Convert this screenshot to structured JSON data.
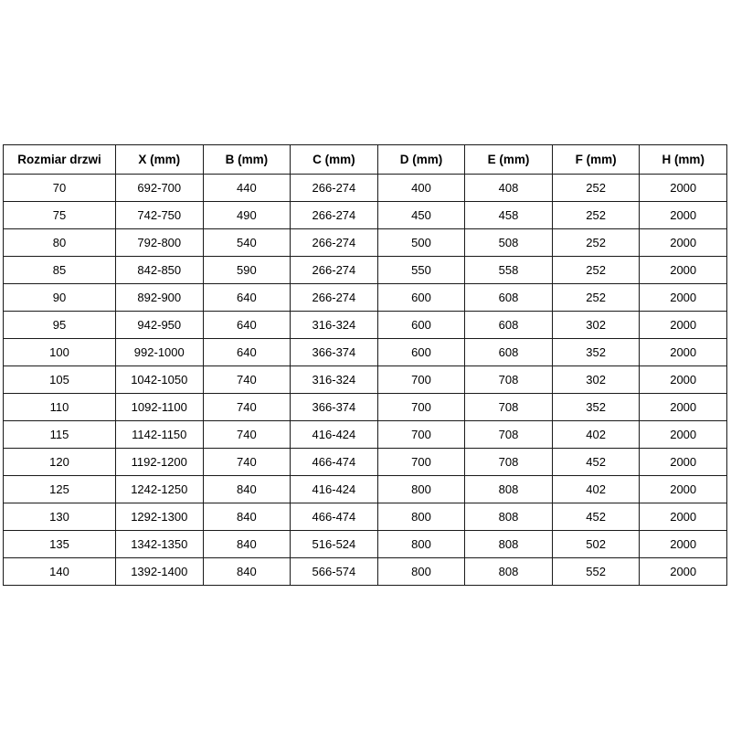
{
  "chart_data": {
    "type": "table",
    "columns": [
      "Rozmiar drzwi",
      "X (mm)",
      "B (mm)",
      "C (mm)",
      "D (mm)",
      "E (mm)",
      "F (mm)",
      "H (mm)"
    ],
    "rows": [
      [
        "70",
        "692-700",
        "440",
        "266-274",
        "400",
        "408",
        "252",
        "2000"
      ],
      [
        "75",
        "742-750",
        "490",
        "266-274",
        "450",
        "458",
        "252",
        "2000"
      ],
      [
        "80",
        "792-800",
        "540",
        "266-274",
        "500",
        "508",
        "252",
        "2000"
      ],
      [
        "85",
        "842-850",
        "590",
        "266-274",
        "550",
        "558",
        "252",
        "2000"
      ],
      [
        "90",
        "892-900",
        "640",
        "266-274",
        "600",
        "608",
        "252",
        "2000"
      ],
      [
        "95",
        "942-950",
        "640",
        "316-324",
        "600",
        "608",
        "302",
        "2000"
      ],
      [
        "100",
        "992-1000",
        "640",
        "366-374",
        "600",
        "608",
        "352",
        "2000"
      ],
      [
        "105",
        "1042-1050",
        "740",
        "316-324",
        "700",
        "708",
        "302",
        "2000"
      ],
      [
        "110",
        "1092-1100",
        "740",
        "366-374",
        "700",
        "708",
        "352",
        "2000"
      ],
      [
        "115",
        "1142-1150",
        "740",
        "416-424",
        "700",
        "708",
        "402",
        "2000"
      ],
      [
        "120",
        "1192-1200",
        "740",
        "466-474",
        "700",
        "708",
        "452",
        "2000"
      ],
      [
        "125",
        "1242-1250",
        "840",
        "416-424",
        "800",
        "808",
        "402",
        "2000"
      ],
      [
        "130",
        "1292-1300",
        "840",
        "466-474",
        "800",
        "808",
        "452",
        "2000"
      ],
      [
        "135",
        "1342-1350",
        "840",
        "516-524",
        "800",
        "808",
        "502",
        "2000"
      ],
      [
        "140",
        "1392-1400",
        "840",
        "566-574",
        "800",
        "808",
        "552",
        "2000"
      ]
    ],
    "title": "",
    "layout": {
      "grid": "full-borders",
      "header_style": "bold",
      "border_color": "#1a1a1a",
      "background": "#ffffff"
    }
  }
}
